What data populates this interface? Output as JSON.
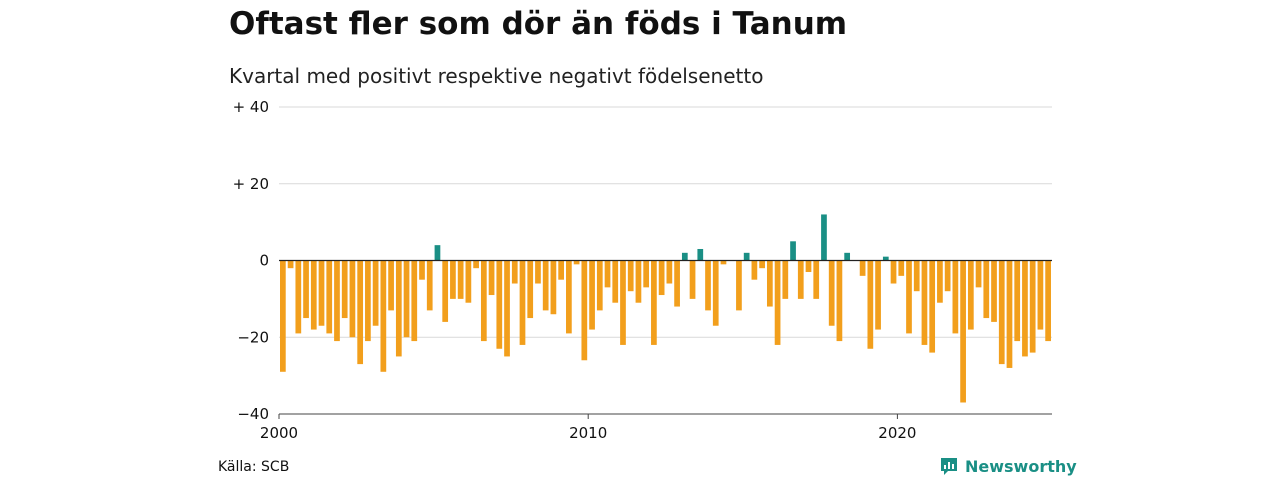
{
  "title": "Oftast fler som dör än föds i Tanum",
  "subtitle": "Kvartal med positivt respektive negativt födelsenetto",
  "source": "Källa: SCB",
  "brand": {
    "name": "Newsworthy",
    "icon": "newsworthy-logo-icon",
    "color": "#1a8f85"
  },
  "colors": {
    "positive": "#1a8f85",
    "negative": "#f29f1c",
    "grid": "#d9d9d9",
    "zero": "#222222"
  },
  "chart_data": {
    "type": "bar",
    "title": "Oftast fler som dör än föds i Tanum",
    "subtitle": "Kvartal med positivt respektive negativt födelsenetto",
    "x_start": 2000,
    "period": "quarter",
    "xticks": [
      2000,
      2010,
      2020
    ],
    "yticks": [
      {
        "value": 40,
        "label": "+ 40"
      },
      {
        "value": 20,
        "label": "+ 20"
      },
      {
        "value": 0,
        "label": "0"
      },
      {
        "value": -20,
        "label": "−20"
      },
      {
        "value": -40,
        "label": "−40"
      }
    ],
    "ylim": [
      -40,
      40
    ],
    "grid": true,
    "values": [
      -29,
      -2,
      -19,
      -15,
      -18,
      -17,
      -19,
      -21,
      -15,
      -20,
      -27,
      -21,
      -17,
      -29,
      -13,
      -25,
      -20,
      -21,
      -5,
      -13,
      4,
      -16,
      -10,
      -10,
      -11,
      -2,
      -21,
      -9,
      -23,
      -25,
      -6,
      -22,
      -15,
      -6,
      -13,
      -14,
      -5,
      -19,
      -1,
      -26,
      -18,
      -13,
      -7,
      -11,
      -22,
      -8,
      -11,
      -7,
      -22,
      -9,
      -6,
      -12,
      2,
      -10,
      3,
      -13,
      -17,
      -1,
      0,
      -13,
      2,
      -5,
      -2,
      -12,
      -22,
      -10,
      5,
      -10,
      -3,
      -10,
      12,
      -17,
      -21,
      2,
      0,
      -4,
      -23,
      -18,
      1,
      -6,
      -4,
      -19,
      -8,
      -22,
      -24,
      -11,
      -8,
      -19,
      -37,
      -18,
      -7,
      -15,
      -16,
      -27,
      -28,
      -21,
      -25,
      -24,
      -18,
      -21
    ]
  }
}
